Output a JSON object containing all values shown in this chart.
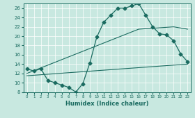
{
  "title": "",
  "xlabel": "Humidex (Indice chaleur)",
  "background_color": "#c8e8e0",
  "grid_color": "#ffffff",
  "line_color": "#1a6b60",
  "xlim": [
    -0.5,
    23.5
  ],
  "ylim": [
    8,
    27
  ],
  "xticks": [
    0,
    1,
    2,
    3,
    4,
    5,
    6,
    7,
    8,
    9,
    10,
    11,
    12,
    13,
    14,
    15,
    16,
    17,
    18,
    19,
    20,
    21,
    22,
    23
  ],
  "yticks": [
    8,
    10,
    12,
    14,
    16,
    18,
    20,
    22,
    24,
    26
  ],
  "line1_x": [
    0,
    1,
    2,
    3,
    4,
    5,
    6,
    7,
    8,
    9,
    10,
    11,
    12,
    13,
    14,
    15,
    16,
    17,
    18,
    19,
    20,
    21,
    22,
    23
  ],
  "line1_y": [
    13.0,
    12.5,
    13.0,
    10.5,
    10.0,
    9.5,
    9.0,
    8.0,
    9.8,
    14.2,
    19.8,
    23.0,
    24.5,
    26.0,
    26.0,
    26.5,
    27.0,
    24.5,
    22.0,
    20.5,
    20.3,
    19.0,
    16.2,
    14.5
  ],
  "line2_x": [
    0,
    16,
    21,
    23
  ],
  "line2_y": [
    12.0,
    21.5,
    22.0,
    21.5
  ],
  "line3_x": [
    0,
    23
  ],
  "line3_y": [
    11.5,
    14.0
  ],
  "marker_size": 2.5
}
